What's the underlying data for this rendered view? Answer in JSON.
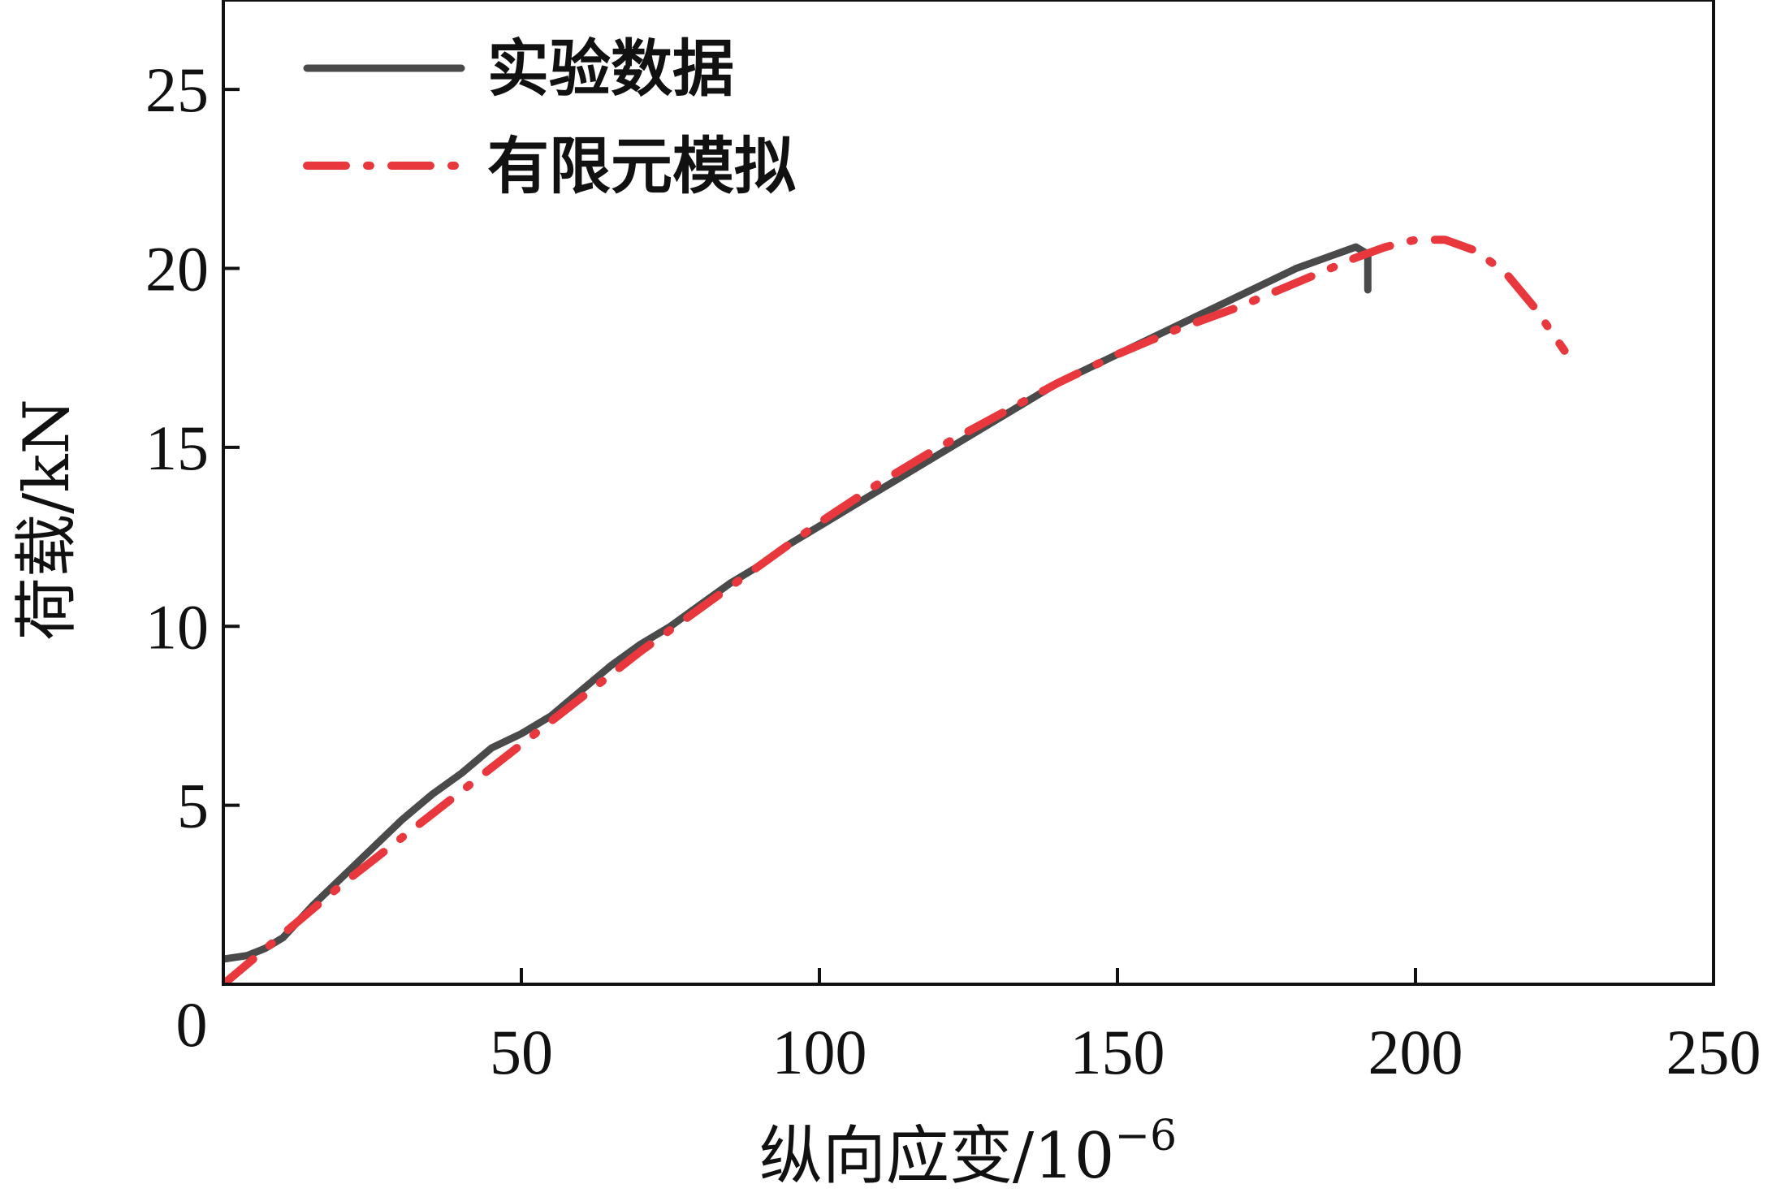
{
  "chart_data": {
    "type": "line",
    "title": "",
    "xlabel": "纵向应变/10",
    "xlabel_sup": "−6",
    "ylabel": "荷载/kN",
    "xlim": [
      0,
      250
    ],
    "ylim": [
      0,
      27.5
    ],
    "origin_label": "0",
    "x_ticks": [
      {
        "value": 50,
        "label": "50"
      },
      {
        "value": 100,
        "label": "100"
      },
      {
        "value": 150,
        "label": "150"
      },
      {
        "value": 200,
        "label": "200"
      },
      {
        "value": 250,
        "label": "250"
      }
    ],
    "y_ticks": [
      {
        "value": 5,
        "label": "5"
      },
      {
        "value": 10,
        "label": "10"
      },
      {
        "value": 15,
        "label": "15"
      },
      {
        "value": 20,
        "label": "20"
      },
      {
        "value": 25,
        "label": "25"
      }
    ],
    "legend_position": "top-left",
    "series": [
      {
        "name": "实验数据",
        "color": "#4a4a4a",
        "style": "solid",
        "points": [
          [
            0,
            0.7
          ],
          [
            4,
            0.8
          ],
          [
            7,
            1.0
          ],
          [
            10,
            1.3
          ],
          [
            15,
            2.2
          ],
          [
            20,
            3.0
          ],
          [
            25,
            3.8
          ],
          [
            30,
            4.6
          ],
          [
            35,
            5.3
          ],
          [
            40,
            5.9
          ],
          [
            45,
            6.6
          ],
          [
            50,
            7.0
          ],
          [
            55,
            7.5
          ],
          [
            60,
            8.2
          ],
          [
            65,
            8.9
          ],
          [
            70,
            9.5
          ],
          [
            75,
            10.0
          ],
          [
            80,
            10.6
          ],
          [
            85,
            11.2
          ],
          [
            90,
            11.7
          ],
          [
            95,
            12.3
          ],
          [
            100,
            12.8
          ],
          [
            105,
            13.3
          ],
          [
            110,
            13.8
          ],
          [
            115,
            14.3
          ],
          [
            120,
            14.8
          ],
          [
            125,
            15.3
          ],
          [
            130,
            15.8
          ],
          [
            135,
            16.3
          ],
          [
            140,
            16.8
          ],
          [
            145,
            17.2
          ],
          [
            150,
            17.6
          ],
          [
            155,
            18.0
          ],
          [
            160,
            18.4
          ],
          [
            165,
            18.8
          ],
          [
            170,
            19.2
          ],
          [
            175,
            19.6
          ],
          [
            180,
            20.0
          ],
          [
            185,
            20.3
          ],
          [
            190,
            20.6
          ],
          [
            192,
            20.4
          ],
          [
            192,
            19.4
          ]
        ]
      },
      {
        "name": "有限元模拟",
        "color": "#e8383d",
        "style": "dashdot",
        "points": [
          [
            0,
            0.0
          ],
          [
            10,
            1.4
          ],
          [
            20,
            2.8
          ],
          [
            30,
            4.1
          ],
          [
            40,
            5.4
          ],
          [
            50,
            6.7
          ],
          [
            60,
            8.0
          ],
          [
            70,
            9.3
          ],
          [
            80,
            10.5
          ],
          [
            90,
            11.7
          ],
          [
            100,
            12.9
          ],
          [
            110,
            14.0
          ],
          [
            120,
            15.0
          ],
          [
            130,
            15.9
          ],
          [
            140,
            16.8
          ],
          [
            150,
            17.6
          ],
          [
            160,
            18.3
          ],
          [
            170,
            18.9
          ],
          [
            180,
            19.6
          ],
          [
            190,
            20.3
          ],
          [
            195,
            20.6
          ],
          [
            200,
            20.8
          ],
          [
            205,
            20.8
          ],
          [
            210,
            20.5
          ],
          [
            215,
            19.9
          ],
          [
            220,
            18.9
          ],
          [
            225,
            17.7
          ]
        ]
      }
    ]
  }
}
